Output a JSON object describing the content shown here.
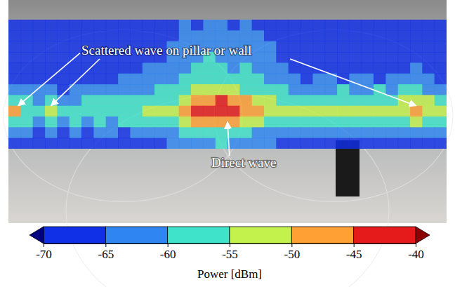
{
  "chart_data": {
    "type": "heatmap",
    "tick_labels": false,
    "annotations": [
      {
        "text": "Scattered wave on pillar or wall"
      },
      {
        "text": "Direct wave"
      }
    ],
    "z": [
      [
        -68,
        -67,
        -66,
        -68,
        -69,
        -67,
        -68,
        -66,
        -68,
        -69,
        -67,
        -68,
        -66,
        -67,
        -65,
        -66,
        -64,
        -65,
        -66,
        -64,
        -66,
        -67,
        -68,
        -66,
        -69,
        -68,
        -67,
        -68,
        -66,
        -68,
        -69,
        -67,
        -68,
        -66,
        -67,
        -68
      ],
      [
        -67,
        -68,
        -69,
        -66,
        -68,
        -67,
        -69,
        -68,
        -66,
        -68,
        -69,
        -67,
        -68,
        -66,
        -65,
        -64,
        -63,
        -64,
        -65,
        -63,
        -65,
        -66,
        -68,
        -67,
        -68,
        -69,
        -66,
        -68,
        -67,
        -69,
        -68,
        -66,
        -68,
        -67,
        -68,
        -69
      ],
      [
        -66,
        -68,
        -67,
        -69,
        -67,
        -68,
        -66,
        -68,
        -69,
        -67,
        -66,
        -68,
        -67,
        -65,
        -64,
        -62,
        -63,
        -61,
        -63,
        -62,
        -64,
        -65,
        -67,
        -68,
        -66,
        -68,
        -69,
        -67,
        -68,
        -66,
        -68,
        -67,
        -66,
        -68,
        -67,
        -66
      ],
      [
        -68,
        -66,
        -68,
        -67,
        -69,
        -66,
        -68,
        -67,
        -68,
        -66,
        -68,
        -67,
        -66,
        -64,
        -63,
        -62,
        -60,
        -62,
        -61,
        -62,
        -63,
        -64,
        -66,
        -67,
        -68,
        -66,
        -67,
        -68,
        -69,
        -67,
        -66,
        -68,
        -67,
        -66,
        -68,
        -67
      ],
      [
        -67,
        -68,
        -66,
        -68,
        -67,
        -68,
        -69,
        -66,
        -68,
        -67,
        -66,
        -65,
        -64,
        -63,
        -62,
        -60,
        -59,
        -60,
        -61,
        -60,
        -62,
        -63,
        -65,
        -66,
        -67,
        -68,
        -66,
        -67,
        -68,
        -66,
        -67,
        -68,
        -66,
        -65,
        -67,
        -68
      ],
      [
        -66,
        -67,
        -68,
        -66,
        -68,
        -67,
        -66,
        -68,
        -67,
        -65,
        -64,
        -63,
        -62,
        -61,
        -59,
        -58,
        -57,
        -56,
        -58,
        -59,
        -60,
        -62,
        -63,
        -64,
        -66,
        -65,
        -64,
        -66,
        -65,
        -64,
        -66,
        -65,
        -64,
        -63,
        -65,
        -66
      ],
      [
        -63,
        -64,
        -65,
        -64,
        -66,
        -65,
        -64,
        -63,
        -64,
        -62,
        -61,
        -62,
        -60,
        -59,
        -57,
        -55,
        -54,
        -53,
        -55,
        -56,
        -57,
        -59,
        -60,
        -61,
        -62,
        -61,
        -62,
        -60,
        -61,
        -62,
        -60,
        -61,
        -60,
        -58,
        -61,
        -62
      ],
      [
        -56,
        -60,
        -61,
        -57,
        -62,
        -61,
        -60,
        -59,
        -60,
        -58,
        -59,
        -58,
        -57,
        -56,
        -52,
        -49,
        -47,
        -45,
        -48,
        -50,
        -53,
        -55,
        -56,
        -57,
        -58,
        -57,
        -58,
        -56,
        -57,
        -58,
        -56,
        -57,
        -55,
        -52,
        -55,
        -58
      ],
      [
        -50,
        -57,
        -58,
        -52,
        -59,
        -58,
        -57,
        -56,
        -57,
        -56,
        -57,
        -55,
        -54,
        -52,
        -48,
        -45,
        -43,
        -42,
        -44,
        -47,
        -50,
        -52,
        -53,
        -54,
        -55,
        -54,
        -55,
        -53,
        -54,
        -55,
        -53,
        -52,
        -51,
        -48,
        -52,
        -55
      ],
      [
        -58,
        -60,
        -61,
        -59,
        -61,
        -60,
        -61,
        -60,
        -61,
        -60,
        -59,
        -58,
        -57,
        -56,
        -53,
        -50,
        -48,
        -47,
        -49,
        -51,
        -54,
        -56,
        -57,
        -58,
        -59,
        -58,
        -59,
        -57,
        -58,
        -59,
        -57,
        -58,
        -56,
        -54,
        -57,
        -59
      ],
      [
        -64,
        -65,
        -66,
        -64,
        -66,
        -65,
        -66,
        -65,
        -64,
        -66,
        -65,
        -64,
        -63,
        -62,
        -60,
        -58,
        -57,
        -56,
        -58,
        -59,
        -61,
        -62,
        -63,
        -64,
        -65,
        -64,
        -65,
        -63,
        -64,
        -65,
        -63,
        -64,
        -62,
        -61,
        -63,
        -65
      ],
      [
        -67,
        -68,
        -66,
        -68,
        -67,
        -68,
        -66,
        -68,
        -67,
        -66,
        -68,
        -67,
        -66,
        -65,
        -64,
        -62,
        -61,
        -60,
        -62,
        -63,
        -64,
        -65,
        -66,
        -67,
        -68,
        -66,
        -67,
        -68,
        -66,
        -67,
        -68,
        -66,
        -67,
        -66,
        -68,
        -67
      ]
    ],
    "colorbar": {
      "label": "Power [dBm]",
      "range": [
        -70,
        -40
      ],
      "ticks": [
        -70,
        -65,
        -60,
        -55,
        -50,
        -45,
        -40
      ],
      "colors": [
        "#000080",
        "#1030e8",
        "#2f86f2",
        "#3fe3c9",
        "#c3f24c",
        "#ffa035",
        "#e51a1a",
        "#8b0000"
      ]
    }
  }
}
